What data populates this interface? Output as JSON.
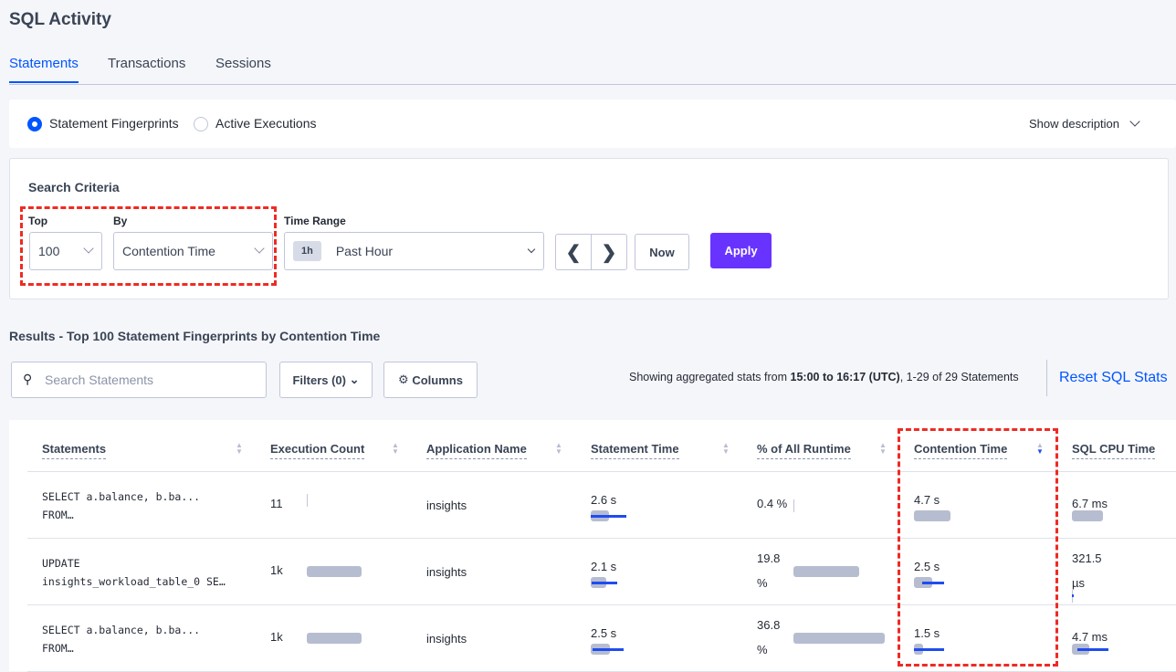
{
  "page_title": "SQL Activity",
  "tabs": [
    {
      "label": "Statements",
      "active": true
    },
    {
      "label": "Transactions"
    },
    {
      "label": "Sessions"
    }
  ],
  "view": {
    "options": [
      {
        "label": "Statement Fingerprints",
        "selected": true
      },
      {
        "label": "Active Executions",
        "selected": false
      }
    ],
    "show_description": "Show description"
  },
  "search": {
    "title": "Search Criteria",
    "top_label": "Top",
    "top_value": "100",
    "by_label": "By",
    "by_value": "Contention Time",
    "time_label": "Time Range",
    "time_badge": "1h",
    "time_value": "Past Hour",
    "now": "Now",
    "apply": "Apply"
  },
  "results": {
    "title": "Results - Top 100 Statement Fingerprints by Contention Time",
    "search_placeholder": "Search Statements",
    "filters": "Filters (0)",
    "columns": "Columns",
    "summary_prefix": "Showing aggregated stats from ",
    "summary_range": "15:00 to 16:17 (UTC)",
    "summary_suffix": ", 1-29 of 29 Statements",
    "reset": "Reset SQL Stats"
  },
  "colors": {
    "accent": "#0055ff",
    "apply": "#6933ff",
    "bar": "#b7bdd0",
    "deviation": "#1f4cf0",
    "highlight": "#ee2b24"
  },
  "table": {
    "headers": [
      "Statements",
      "Execution Count",
      "Application Name",
      "Statement Time",
      "% of All Runtime",
      "Contention Time",
      "SQL CPU Time"
    ],
    "sorted_by": "Contention Time",
    "sort_dir": "desc",
    "rows": [
      {
        "stmt1": "SELECT a.balance, b.ba...",
        "stmt2": "FROM…",
        "exec": "11",
        "exec_bar": 0.02,
        "app": "insights",
        "time": "2.6 s",
        "time_bar": 0.2,
        "time_dev": [
          0,
          0.39
        ],
        "pct1": "0.4 %",
        "pct2": "",
        "pct_bar": 0.004,
        "cont": "4.7 s",
        "cont_bar": 0.4,
        "cont_dev": null,
        "cpu1": "6.7 ms",
        "cpu2": "",
        "cpu_bar": 0.34,
        "cpu_dev": null
      },
      {
        "stmt1": "UPDATE",
        "stmt2": "insights_workload_table_0 SE…",
        "exec": "1k",
        "exec_bar": 0.6,
        "app": "insights",
        "time": "2.1 s",
        "time_bar": 0.17,
        "time_dev": [
          0.01,
          0.29
        ],
        "pct1": "19.8",
        "pct2": "%",
        "pct_bar": 0.72,
        "cont": "2.5 s",
        "cont_bar": 0.2,
        "cont_dev": [
          0.09,
          0.33
        ],
        "cpu1": "321.5",
        "cpu2": "µs",
        "cpu_bar": 0.01,
        "cpu_dev": [
          0,
          0.02
        ]
      },
      {
        "stmt1": "SELECT a.balance, b.ba...",
        "stmt2": "FROM…",
        "exec": "1k",
        "exec_bar": 0.6,
        "app": "insights",
        "time": "2.5 s",
        "time_bar": 0.21,
        "time_dev": [
          0.02,
          0.36
        ],
        "pct1": "36.8",
        "pct2": "%",
        "pct_bar": 1.0,
        "cont": "1.5 s",
        "cont_bar": 0.1,
        "cont_dev": [
          0,
          0.33
        ],
        "cpu1": "4.7 ms",
        "cpu2": "",
        "cpu_bar": 0.19,
        "cpu_dev": [
          0.06,
          0.4
        ]
      }
    ]
  }
}
